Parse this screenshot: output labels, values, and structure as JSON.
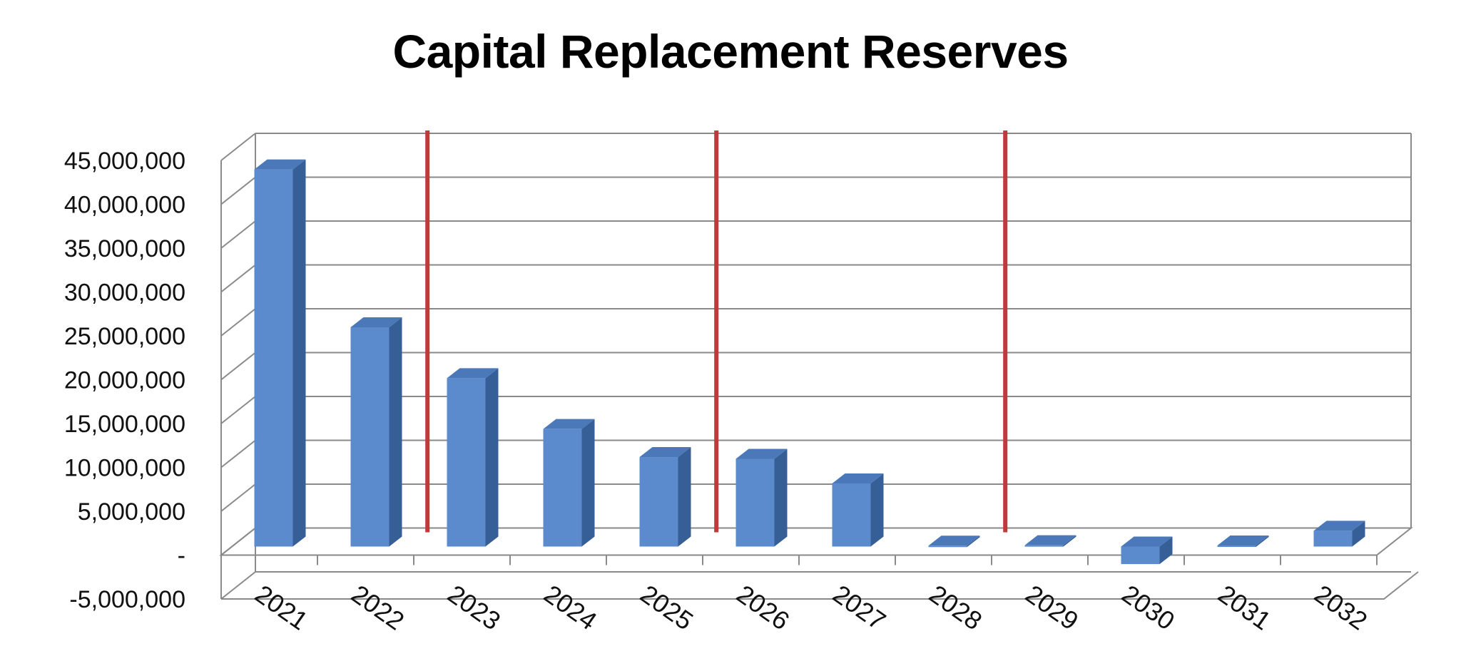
{
  "chart_data": {
    "type": "bar",
    "title": "Capital Replacement Reserves",
    "xlabel": "",
    "ylabel": "",
    "categories": [
      "2021",
      "2022",
      "2023",
      "2024",
      "2025",
      "2026",
      "2027",
      "2028",
      "2029",
      "2030",
      "2031",
      "2032"
    ],
    "series": [
      {
        "values": [
          43000000,
          25000000,
          19200000,
          13400000,
          10200000,
          10000000,
          7200000,
          100000,
          150000,
          -2000000,
          120000,
          1800000
        ]
      }
    ],
    "ylim": [
      -5000000,
      45000000
    ],
    "y_ticks": [
      -5000000,
      0,
      5000000,
      10000000,
      15000000,
      20000000,
      25000000,
      30000000,
      35000000,
      40000000,
      45000000
    ],
    "y_tick_labels": [
      "-5,000,000",
      "-",
      "5,000,000",
      "10,000,000",
      "15,000,000",
      "20,000,000",
      "25,000,000",
      "30,000,000",
      "35,000,000",
      "40,000,000",
      "45,000,000"
    ],
    "grid": true,
    "legend": "none",
    "three_d": true,
    "bar_color": "#5b8bcd",
    "bar_side_color": "#355f96",
    "bar_top_color": "#4a78b8",
    "divider_color": "#c0393b",
    "divider_after_categories": [
      "2022",
      "2025",
      "2028"
    ]
  }
}
